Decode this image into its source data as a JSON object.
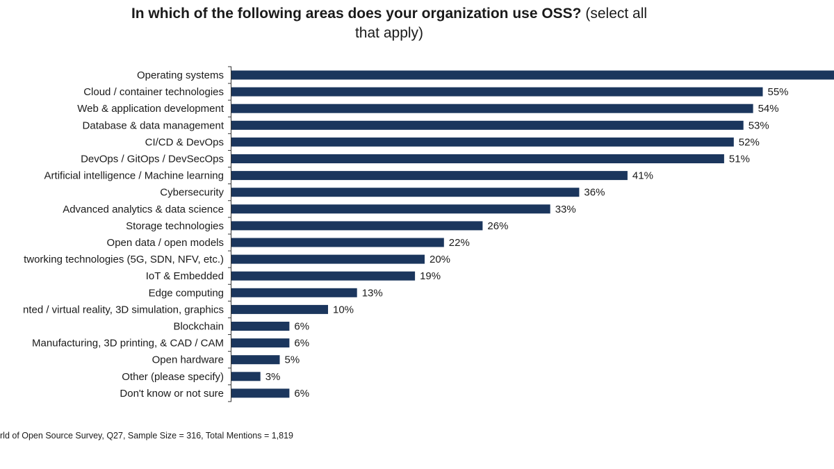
{
  "chart_data": {
    "type": "bar",
    "orientation": "horizontal",
    "title_bold": "In which of the following areas does your organization use OSS?",
    "title_normal_line1": " (select all",
    "title_normal_line2": "that apply)",
    "categories": [
      "Operating systems",
      "Cloud / container technologies",
      "Web & application development",
      "Database & data management",
      "CI/CD & DevOps",
      "DevOps / GitOps / DevSecOps",
      "Artificial intelligence / Machine learning",
      "Cybersecurity",
      "Advanced analytics & data science",
      "Storage technologies",
      "Open data / open models",
      "tworking technologies (5G, SDN, NFV, etc.)",
      "IoT & Embedded",
      "Edge computing",
      "nted / virtual reality, 3D simulation, graphics",
      "Blockchain",
      "Manufacturing, 3D printing, & CAD / CAM",
      "Open hardware",
      "Other (please specify)",
      "Don't know or not sure"
    ],
    "values": [
      64,
      55,
      54,
      53,
      52,
      51,
      41,
      36,
      33,
      26,
      22,
      20,
      19,
      13,
      10,
      6,
      6,
      5,
      3,
      6
    ],
    "data_labels": [
      "",
      "55%",
      "54%",
      "53%",
      "52%",
      "51%",
      "41%",
      "36%",
      "33%",
      "26%",
      "22%",
      "20%",
      "19%",
      "13%",
      "10%",
      "6%",
      "6%",
      "5%",
      "3%",
      "6%"
    ],
    "unit": "%",
    "xlim": [
      0,
      64
    ],
    "grid": false,
    "legend": "none",
    "bar_color": "#1b365d"
  },
  "footer": "rld of Open Source Survey, Q27, Sample Size = 316, Total Mentions = 1,819"
}
